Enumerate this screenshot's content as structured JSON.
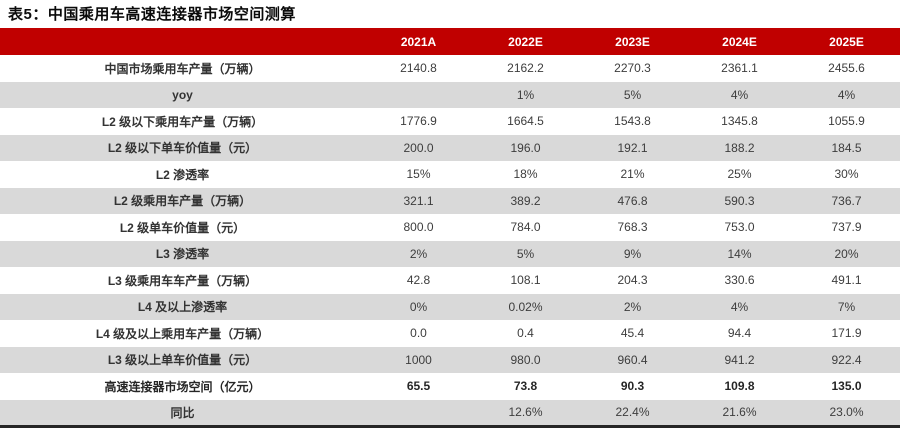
{
  "title": "表5：中国乘用车高速连接器市场空间测算",
  "colors": {
    "header_bg": "#C00000",
    "header_text": "#FFFFFF",
    "row_alt_bg": "#D9D9D9",
    "row_bg": "#FFFFFF",
    "body_text": "#3D3D3D",
    "bottom_border": "#262626"
  },
  "table": {
    "columns": [
      "",
      "2021A",
      "2022E",
      "2023E",
      "2024E",
      "2025E"
    ],
    "rows": [
      {
        "label": "中国市场乘用车产量（万辆）",
        "values": [
          "2140.8",
          "2162.2",
          "2270.3",
          "2361.1",
          "2455.6"
        ],
        "bold": false
      },
      {
        "label": "yoy",
        "values": [
          "",
          "1%",
          "5%",
          "4%",
          "4%"
        ],
        "bold": false
      },
      {
        "label": "L2 级以下乘用车产量（万辆）",
        "values": [
          "1776.9",
          "1664.5",
          "1543.8",
          "1345.8",
          "1055.9"
        ],
        "bold": false
      },
      {
        "label": "L2 级以下单车价值量（元）",
        "values": [
          "200.0",
          "196.0",
          "192.1",
          "188.2",
          "184.5"
        ],
        "bold": false
      },
      {
        "label": "L2 渗透率",
        "values": [
          "15%",
          "18%",
          "21%",
          "25%",
          "30%"
        ],
        "bold": false
      },
      {
        "label": "L2 级乘用车产量（万辆）",
        "values": [
          "321.1",
          "389.2",
          "476.8",
          "590.3",
          "736.7"
        ],
        "bold": false
      },
      {
        "label": "L2 级单车价值量（元）",
        "values": [
          "800.0",
          "784.0",
          "768.3",
          "753.0",
          "737.9"
        ],
        "bold": false
      },
      {
        "label": "L3 渗透率",
        "values": [
          "2%",
          "5%",
          "9%",
          "14%",
          "20%"
        ],
        "bold": false
      },
      {
        "label": "L3 级乘用车车产量（万辆）",
        "values": [
          "42.8",
          "108.1",
          "204.3",
          "330.6",
          "491.1"
        ],
        "bold": false
      },
      {
        "label": "L4 及以上渗透率",
        "values": [
          "0%",
          "0.02%",
          "2%",
          "4%",
          "7%"
        ],
        "bold": false
      },
      {
        "label": "L4 级及以上乘用车产量（万辆）",
        "values": [
          "0.0",
          "0.4",
          "45.4",
          "94.4",
          "171.9"
        ],
        "bold": false
      },
      {
        "label": "L3 级以上单车价值量（元）",
        "values": [
          "1000",
          "980.0",
          "960.4",
          "941.2",
          "922.4"
        ],
        "bold": false
      },
      {
        "label": "高速连接器市场空间（亿元）",
        "values": [
          "65.5",
          "73.8",
          "90.3",
          "109.8",
          "135.0"
        ],
        "bold": true
      },
      {
        "label": "同比",
        "values": [
          "",
          "12.6%",
          "22.4%",
          "21.6%",
          "23.0%"
        ],
        "bold": false
      }
    ]
  }
}
